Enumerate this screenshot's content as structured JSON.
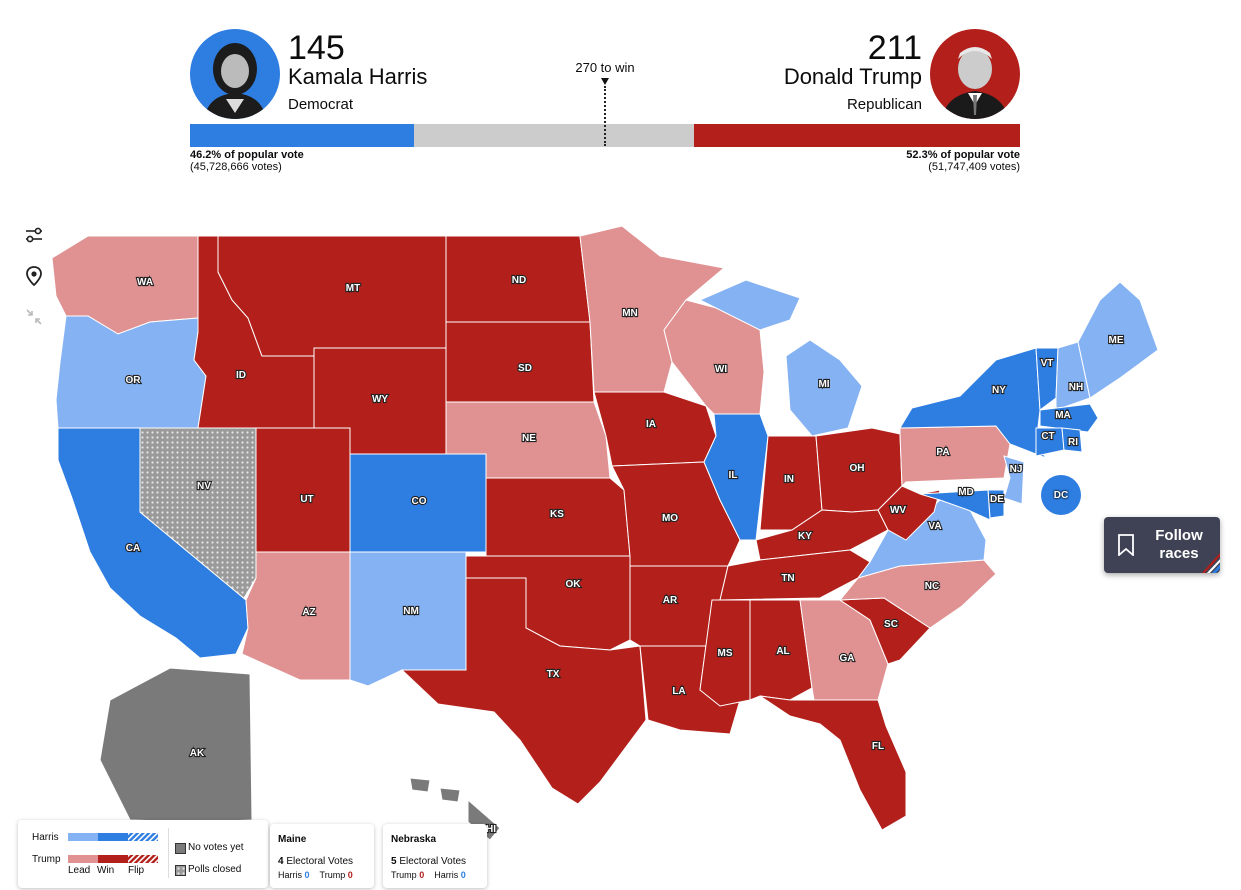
{
  "header": {
    "harris": {
      "count": "145",
      "name": "Kamala Harris",
      "party": "Democrat",
      "pct": "46.2% of popular vote",
      "votes": "(45,728,666 votes)",
      "color": "#2e7de1"
    },
    "trump": {
      "count": "211",
      "name": "Donald Trump",
      "party": "Republican",
      "pct": "52.3% of popular vote",
      "votes": "(51,747,409 votes)",
      "color": "#b3201b"
    },
    "to_win": "270 to win",
    "progress": {
      "harris_fraction": 0.2697,
      "remaining_fraction": 0.3375,
      "trump_fraction": 0.3928,
      "remaining_color": "#cccccc"
    }
  },
  "map": {
    "colors": {
      "harris_win": "#2e7de1",
      "harris_lead": "#85b2f2",
      "trump_win": "#b3201b",
      "trump_lead": "#e09293",
      "no_votes": "#7a7a7a",
      "polls_closed": "#a6a6a6"
    },
    "states": [
      "WA",
      "OR",
      "CA",
      "NV",
      "ID",
      "MT",
      "WY",
      "UT",
      "AZ",
      "NM",
      "CO",
      "ND",
      "SD",
      "NE",
      "KS",
      "OK",
      "TX",
      "MN",
      "IA",
      "MO",
      "AR",
      "LA",
      "WI",
      "IL",
      "MI",
      "IN",
      "OH",
      "KY",
      "TN",
      "MS",
      "AL",
      "GA",
      "FL",
      "SC",
      "NC",
      "VA",
      "WV",
      "PA",
      "NY",
      "VT",
      "NH",
      "ME",
      "MA",
      "CT",
      "RI",
      "NJ",
      "DE",
      "MD",
      "DC",
      "AK",
      "HI"
    ],
    "dc_label": "DC"
  },
  "controls": {
    "settings_icon": "sliders-icon",
    "locate_icon": "map-pin-icon",
    "collapse_icon": "collapse-arrows-icon"
  },
  "follow_button": {
    "label": "Follow races",
    "icon": "bookmark-icon"
  },
  "legend": {
    "harris": "Harris",
    "trump": "Trump",
    "lead": "Lead",
    "win": "Win",
    "flip": "Flip",
    "no_votes": "No votes yet",
    "polls_closed": "Polls closed"
  },
  "cards": {
    "maine": {
      "title": "Maine",
      "ev_num": "4",
      "ev_label": "Electoral Votes",
      "first_name": "Harris",
      "first_val": "0",
      "second_name": "Trump",
      "second_val": "0"
    },
    "nebraska": {
      "title": "Nebraska",
      "ev_num": "5",
      "ev_label": "Electoral Votes",
      "first_name": "Trump",
      "first_val": "0",
      "second_name": "Harris",
      "second_val": "0"
    }
  }
}
